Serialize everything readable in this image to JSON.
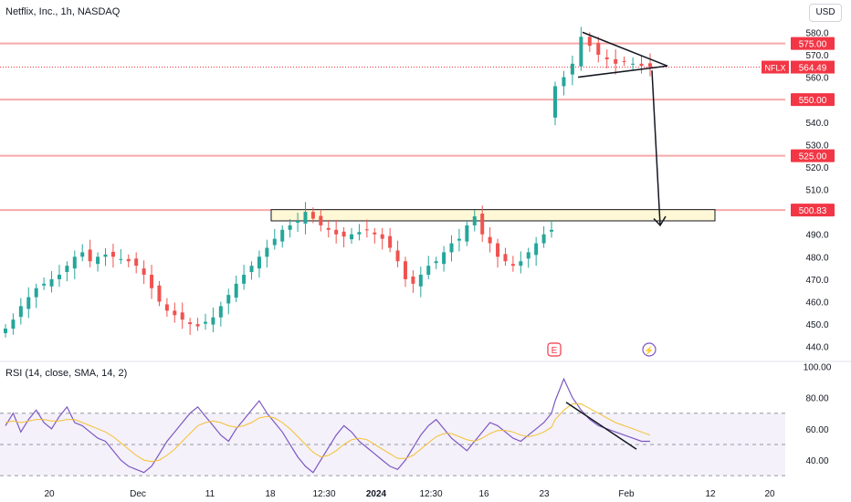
{
  "title": "Netflix, Inc., 1h, NASDAQ",
  "currency": "USD",
  "rsi_title": "RSI (14, close, SMA, 14, 2)",
  "colors": {
    "up": "#26a69a",
    "down": "#ef5350",
    "level": "#f7a9a9",
    "tag": "#f23645",
    "rsi": "#7e57c2",
    "rsi_ma": "#f5c033",
    "zone": "#fff8d6"
  },
  "chart_data": [
    {
      "type": "candlestick",
      "title": "Netflix, Inc., 1h, NASDAQ",
      "ylim": [
        435,
        583
      ],
      "y_ticks": [
        440,
        450,
        460,
        470,
        480,
        490,
        510,
        520,
        530,
        540,
        560,
        570,
        580
      ],
      "x_ticks": [
        "20",
        "Dec",
        "11",
        "18",
        "12:30",
        "2024",
        "12:30",
        "16",
        "23",
        "Feb",
        "12",
        "20"
      ],
      "price_levels": [
        575.0,
        550.0,
        525.0,
        500.83
      ],
      "last_price": {
        "symbol": "NFLX",
        "value": "564.49"
      },
      "level_labels": [
        "575.00",
        "550.00",
        "525.00",
        "500.83"
      ],
      "annotations": [
        "E",
        "⚡"
      ],
      "close_series": [
        448,
        452,
        458,
        462,
        466,
        468,
        470,
        472,
        476,
        480,
        482,
        478,
        480,
        481,
        480,
        479,
        478,
        476,
        472,
        466,
        460,
        456,
        454,
        452,
        450,
        449,
        451,
        453,
        458,
        463,
        468,
        472,
        476,
        480,
        484,
        488,
        492,
        494,
        496,
        500,
        497,
        494,
        492,
        490,
        489,
        490,
        491,
        492,
        490,
        488,
        484,
        478,
        470,
        468,
        472,
        476,
        478,
        482,
        486,
        488,
        494,
        498,
        490,
        486,
        480,
        478,
        476,
        478,
        482,
        486,
        490,
        492,
        556,
        560,
        566,
        578,
        574,
        570,
        568,
        566,
        567,
        566,
        565,
        564.49
      ]
    },
    {
      "type": "line",
      "title": "RSI (14, close, SMA, 14, 2)",
      "ylim": [
        26,
        102
      ],
      "y_ticks": [
        40.0,
        60.0,
        80.0,
        100.0
      ],
      "bands": [
        70,
        50,
        30
      ],
      "series": [
        {
          "name": "RSI",
          "values": [
            62,
            70,
            58,
            66,
            72,
            64,
            60,
            68,
            74,
            64,
            62,
            58,
            54,
            52,
            46,
            40,
            36,
            34,
            32,
            36,
            44,
            52,
            58,
            64,
            70,
            74,
            68,
            62,
            56,
            52,
            60,
            66,
            72,
            78,
            70,
            64,
            58,
            50,
            42,
            36,
            32,
            40,
            48,
            56,
            62,
            58,
            52,
            48,
            44,
            40,
            36,
            34,
            40,
            48,
            56,
            62,
            66,
            60,
            54,
            50,
            46,
            52,
            58,
            64,
            62,
            58,
            54,
            52,
            56,
            60,
            64,
            70,
            78,
            92,
            80,
            72,
            66,
            62,
            60,
            58,
            56,
            54,
            52,
            52
          ]
        },
        {
          "name": "SMA",
          "values": [
            64,
            65,
            64,
            65,
            66,
            66,
            65,
            65,
            66,
            66,
            64,
            62,
            60,
            58,
            55,
            51,
            47,
            43,
            40,
            39,
            40,
            43,
            47,
            52,
            57,
            62,
            64,
            65,
            64,
            62,
            61,
            62,
            64,
            67,
            68,
            67,
            64,
            60,
            55,
            50,
            45,
            42,
            43,
            46,
            50,
            53,
            54,
            53,
            50,
            47,
            44,
            41,
            41,
            43,
            47,
            51,
            55,
            57,
            57,
            55,
            53,
            52,
            54,
            57,
            59,
            59,
            58,
            56,
            55,
            56,
            58,
            61,
            66,
            72,
            76,
            76,
            73,
            70,
            67,
            64,
            62,
            60,
            58,
            56
          ]
        }
      ]
    }
  ]
}
